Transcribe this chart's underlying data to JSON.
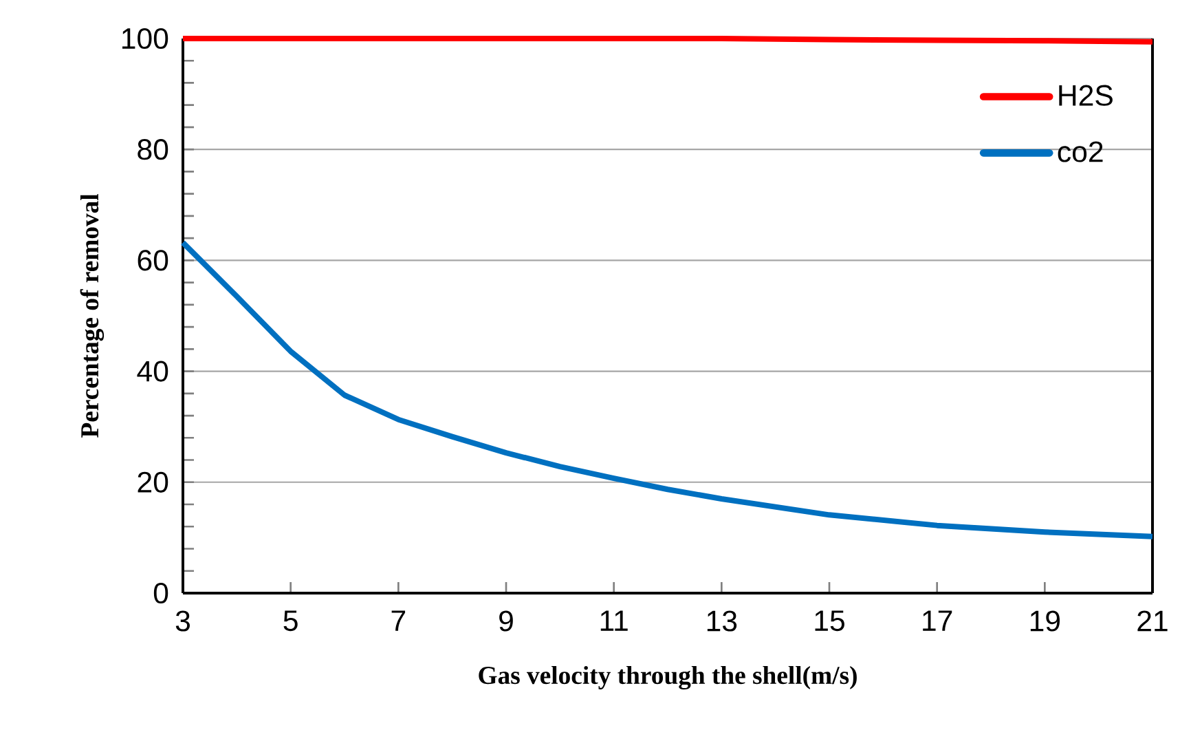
{
  "chart_data": {
    "type": "line",
    "xlabel": "Gas velocity through the shell(m/s)",
    "ylabel": "Percentage of removal",
    "xlim": [
      3,
      21
    ],
    "xticks": [
      3,
      5,
      7,
      9,
      11,
      13,
      15,
      17,
      19,
      21
    ],
    "ylim": [
      0,
      100
    ],
    "yticks": [
      0,
      20,
      40,
      60,
      80,
      100
    ],
    "grid": "y",
    "legend": "top right",
    "marker": "none",
    "line_style": "solid",
    "series": [
      {
        "name": "H2S",
        "color": "#ff0000",
        "x": [
          3,
          5,
          7,
          9,
          11,
          13,
          15,
          17,
          19,
          21
        ],
        "values": [
          100,
          100,
          100,
          100,
          100,
          100,
          99.8,
          99.7,
          99.6,
          99.4
        ]
      },
      {
        "name": "co2",
        "color": "#0070c0",
        "x": [
          3,
          4,
          5,
          6,
          7,
          8,
          9,
          10,
          11,
          12,
          13,
          15,
          17,
          19,
          21
        ],
        "values": [
          63.2,
          53.5,
          43.6,
          35.7,
          31.3,
          28.2,
          25.3,
          22.8,
          20.7,
          18.7,
          17.0,
          14.1,
          12.2,
          11.0,
          10.2
        ]
      }
    ]
  }
}
